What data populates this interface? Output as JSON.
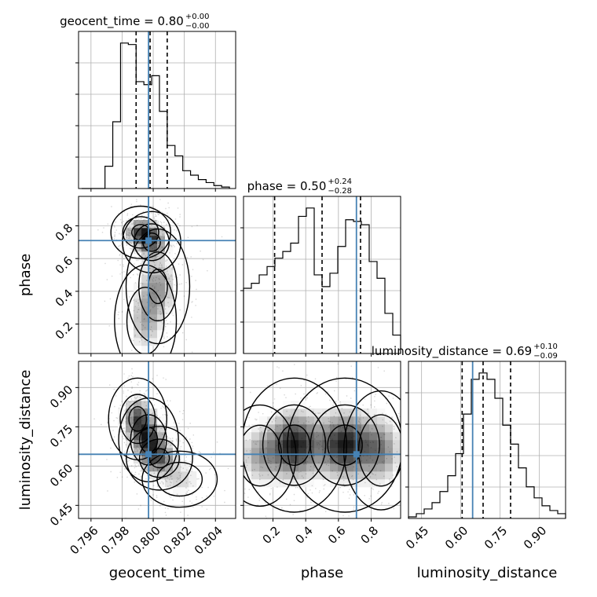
{
  "chart_data": {
    "type": "corner",
    "parameters": [
      "geocent_time",
      "phase",
      "luminosity_distance"
    ],
    "truths": {
      "geocent_time": 0.7997,
      "phase": 0.71,
      "luminosity_distance": 0.645
    },
    "titles": [
      {
        "param": "geocent_time",
        "text": "geocent_time = 0.80",
        "plus": "+0.00",
        "minus": "−0.00"
      },
      {
        "param": "phase",
        "text": "phase = 0.50",
        "plus": "+0.24",
        "minus": "−0.28"
      },
      {
        "param": "luminosity_distance",
        "text": "luminosity_distance = 0.69",
        "plus": "+0.10",
        "minus": "−0.09"
      }
    ],
    "axes": {
      "geocent_time": {
        "label": "geocent_time",
        "range": [
          0.7952,
          0.8053
        ],
        "ticks": [
          0.796,
          0.798,
          0.8,
          0.802,
          0.804
        ],
        "tick_labels": [
          "0.796",
          "0.798",
          "0.800",
          "0.802",
          "0.804"
        ]
      },
      "phase": {
        "label": "phase",
        "range": [
          0.02,
          0.98
        ],
        "ticks": [
          0.2,
          0.4,
          0.6,
          0.8
        ],
        "tick_labels": [
          "0.2",
          "0.4",
          "0.6",
          "0.8"
        ]
      },
      "luminosity_distance": {
        "label": "luminosity_distance",
        "range": [
          0.4,
          1.0
        ],
        "ticks": [
          0.45,
          0.6,
          0.75,
          0.9
        ],
        "tick_labels": [
          "0.45",
          "0.60",
          "0.75",
          "0.90"
        ]
      }
    },
    "histograms": {
      "geocent_time": {
        "bin_edges": [
          0.7954,
          0.7959,
          0.7964,
          0.7969,
          0.7974,
          0.7979,
          0.7984,
          0.7989,
          0.7994,
          0.7999,
          0.8004,
          0.8009,
          0.8014,
          0.8019,
          0.8024,
          0.8029,
          0.8034,
          0.8039,
          0.8044,
          0.8049
        ],
        "counts": [
          0,
          0,
          0,
          0.15,
          0.45,
          0.98,
          0.97,
          0.72,
          0.7,
          0.76,
          0.52,
          0.29,
          0.22,
          0.12,
          0.09,
          0.06,
          0.04,
          0.02,
          0.01
        ],
        "quantiles": [
          0.7989,
          0.7998,
          0.8009
        ]
      },
      "phase": {
        "bin_edges": [
          0.02,
          0.068,
          0.116,
          0.164,
          0.212,
          0.26,
          0.308,
          0.356,
          0.404,
          0.452,
          0.5,
          0.548,
          0.596,
          0.644,
          0.692,
          0.74,
          0.788,
          0.836,
          0.884,
          0.932,
          0.98
        ],
        "counts": [
          0.39,
          0.42,
          0.47,
          0.52,
          0.57,
          0.61,
          0.66,
          0.82,
          0.87,
          0.47,
          0.4,
          0.48,
          0.64,
          0.8,
          0.79,
          0.77,
          0.55,
          0.45,
          0.24,
          0.11
        ],
        "quantiles": [
          0.21,
          0.5,
          0.735
        ]
      },
      "luminosity_distance": {
        "bin_edges": [
          0.4,
          0.43,
          0.46,
          0.49,
          0.52,
          0.55,
          0.58,
          0.61,
          0.64,
          0.67,
          0.7,
          0.73,
          0.76,
          0.79,
          0.82,
          0.85,
          0.88,
          0.91,
          0.94,
          0.97,
          1.0
        ],
        "counts": [
          0.01,
          0.03,
          0.06,
          0.1,
          0.17,
          0.27,
          0.41,
          0.66,
          0.88,
          0.92,
          0.88,
          0.76,
          0.59,
          0.47,
          0.32,
          0.2,
          0.13,
          0.08,
          0.05,
          0.03
        ],
        "quantiles": [
          0.605,
          0.685,
          0.79
        ]
      }
    },
    "pair_plots": [
      {
        "x": "geocent_time",
        "y": "phase",
        "blobs": [
          {
            "x": 0.7992,
            "y": 0.76,
            "sx": 0.0006,
            "sy": 0.05,
            "w": 1.0
          },
          {
            "x": 0.7999,
            "y": 0.7,
            "sx": 0.0006,
            "sy": 0.06,
            "w": 0.9
          },
          {
            "x": 0.8003,
            "y": 0.43,
            "sx": 0.0007,
            "sy": 0.12,
            "w": 0.65
          },
          {
            "x": 0.7995,
            "y": 0.22,
            "sx": 0.0007,
            "sy": 0.12,
            "w": 0.55
          }
        ]
      },
      {
        "x": "geocent_time",
        "y": "luminosity_distance",
        "blobs": [
          {
            "x": 0.799,
            "y": 0.78,
            "sx": 0.0006,
            "sy": 0.05,
            "w": 0.9
          },
          {
            "x": 0.7997,
            "y": 0.7,
            "sx": 0.0006,
            "sy": 0.05,
            "w": 1.0
          },
          {
            "x": 0.8004,
            "y": 0.63,
            "sx": 0.0007,
            "sy": 0.04,
            "w": 0.8
          },
          {
            "x": 0.8017,
            "y": 0.55,
            "sx": 0.0009,
            "sy": 0.04,
            "w": 0.35
          }
        ]
      },
      {
        "x": "phase",
        "y": "luminosity_distance",
        "blobs": [
          {
            "x": 0.33,
            "y": 0.68,
            "sx": 0.1,
            "sy": 0.08,
            "w": 1.0
          },
          {
            "x": 0.64,
            "y": 0.68,
            "sx": 0.11,
            "sy": 0.08,
            "w": 1.0
          },
          {
            "x": 0.12,
            "y": 0.64,
            "sx": 0.08,
            "sy": 0.07,
            "w": 0.45
          },
          {
            "x": 0.86,
            "y": 0.66,
            "sx": 0.08,
            "sy": 0.08,
            "w": 0.55
          }
        ]
      }
    ],
    "truth_color": "#4682b4",
    "contour_color": "#000000",
    "grid": true
  }
}
